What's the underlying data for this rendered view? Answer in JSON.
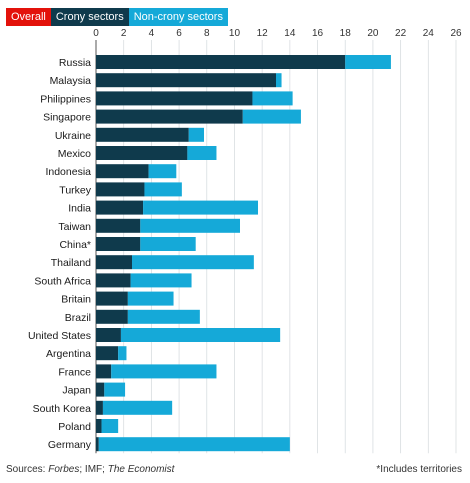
{
  "tabs": [
    {
      "label": "Overall"
    },
    {
      "label": "Crony sectors"
    },
    {
      "label": "Non-crony sectors"
    }
  ],
  "footer": {
    "sources_prefix": "Sources: ",
    "source_1": "Forbes",
    "source_sep_1": "; IMF; ",
    "source_2": "The Economist",
    "note": "*Includes territories"
  },
  "chart_data": {
    "type": "bar",
    "orientation": "horizontal",
    "stacked": true,
    "xlim": [
      0,
      26
    ],
    "ticks": [
      0,
      2,
      4,
      6,
      8,
      10,
      12,
      14,
      16,
      18,
      20,
      22,
      24,
      26
    ],
    "grid": true,
    "categories": [
      "Russia",
      "Malaysia",
      "Philippines",
      "Singapore",
      "Ukraine",
      "Mexico",
      "Indonesia",
      "Turkey",
      "India",
      "Taiwan",
      "China*",
      "Thailand",
      "South Africa",
      "Britain",
      "Brazil",
      "United States",
      "Argentina",
      "France",
      "Japan",
      "South Korea",
      "Poland",
      "Germany"
    ],
    "series": [
      {
        "name": "Crony sectors",
        "color": "#0f3a4c",
        "values": [
          18.0,
          13.0,
          11.3,
          10.6,
          6.7,
          6.6,
          3.8,
          3.5,
          3.4,
          3.2,
          3.2,
          2.6,
          2.5,
          2.3,
          2.3,
          1.8,
          1.6,
          1.1,
          0.6,
          0.5,
          0.4,
          0.2
        ]
      },
      {
        "name": "Non-crony sectors",
        "color": "#15a9d8",
        "values": [
          3.3,
          0.4,
          2.9,
          4.2,
          1.1,
          2.1,
          2.0,
          2.7,
          8.3,
          7.2,
          4.0,
          8.8,
          4.4,
          3.3,
          5.2,
          11.5,
          0.6,
          7.6,
          1.5,
          5.0,
          1.2,
          13.8
        ]
      }
    ]
  }
}
